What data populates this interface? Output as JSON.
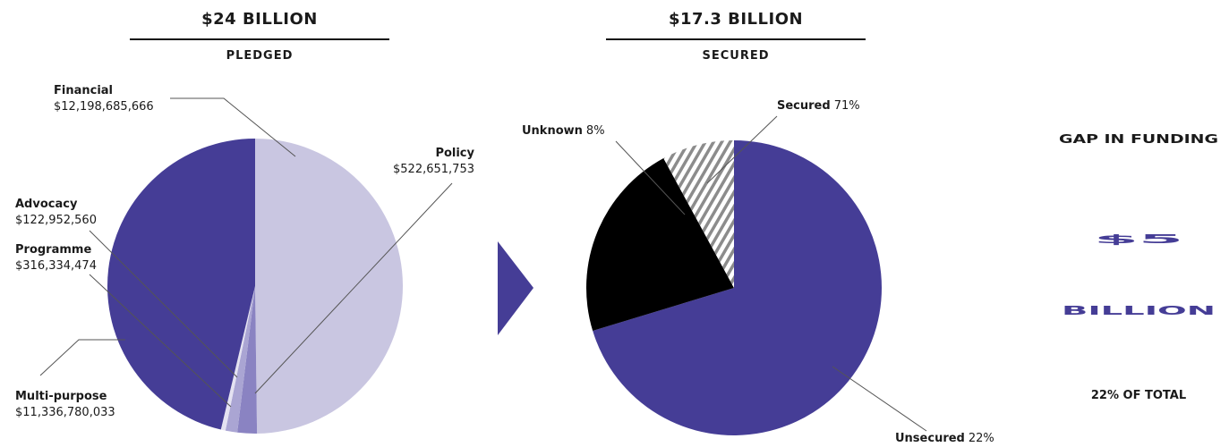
{
  "chart_data": [
    {
      "type": "pie",
      "title": "$24 BILLION",
      "subtitle": "PLEDGED",
      "categories": [
        "Financial",
        "Policy",
        "Programme",
        "Advocacy",
        "Multi-purpose"
      ],
      "values": [
        12198685666,
        522651753,
        316334474,
        122952560,
        11336780033
      ],
      "value_labels": [
        "$12,198,685,666",
        "$522,651,753",
        "$316,334,474",
        "$122,952,560",
        "$11,336,780,033"
      ],
      "colors": [
        "#c9c6e1",
        "#8a83c2",
        "#aaa5d3",
        "#e4e2f1",
        "#453d96"
      ]
    },
    {
      "type": "pie",
      "title": "$17.3 BILLION",
      "subtitle": "SECURED",
      "categories": [
        "Secured",
        "Unsecured",
        "Unknown"
      ],
      "values": [
        71,
        22,
        8
      ],
      "value_labels": [
        "71%",
        "22%",
        "8%"
      ],
      "colors": [
        "#453d96",
        "#000000",
        "url(#hatch)"
      ]
    }
  ],
  "gap": {
    "title": "GAP IN FUNDING",
    "amount": "$5",
    "unit": "BILLION",
    "share": "22% OF TOTAL"
  }
}
